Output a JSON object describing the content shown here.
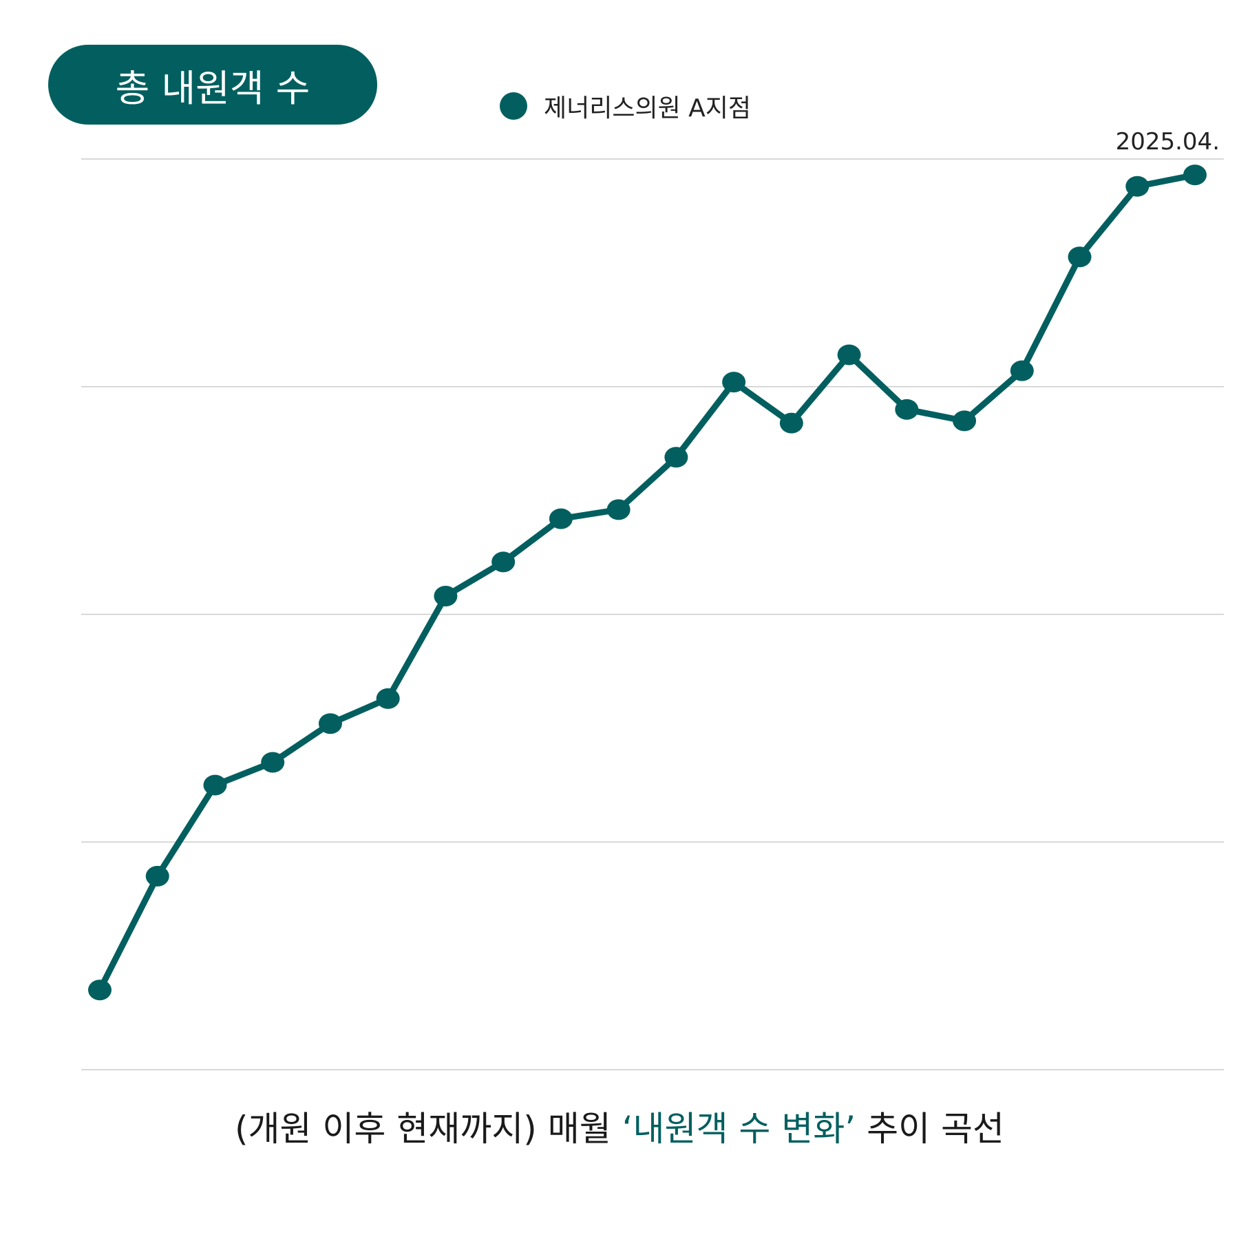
{
  "title": "총 내원객 수",
  "legend": {
    "label": "제너리스의원 A지점"
  },
  "end_label": "2025.04.",
  "caption": {
    "prefix": "(개원 이후 현재까지) 매월 ",
    "highlight": "‘내원객 수 변화’",
    "suffix": " 추이 곡선"
  },
  "colors": {
    "accent": "#035f5f",
    "grid": "#cccccc"
  },
  "chart_data": {
    "type": "line",
    "title": "총 내원객 수",
    "xlabel": "",
    "ylabel": "",
    "ylim": [
      0,
      4
    ],
    "grid": true,
    "legend_position": "top-center",
    "series": [
      {
        "name": "제너리스의원 A지점",
        "values": [
          0.35,
          0.85,
          1.25,
          1.35,
          1.52,
          1.63,
          2.08,
          2.23,
          2.42,
          2.46,
          2.69,
          3.02,
          2.84,
          3.14,
          2.9,
          2.85,
          3.07,
          3.57,
          3.88,
          3.93
        ]
      }
    ]
  }
}
